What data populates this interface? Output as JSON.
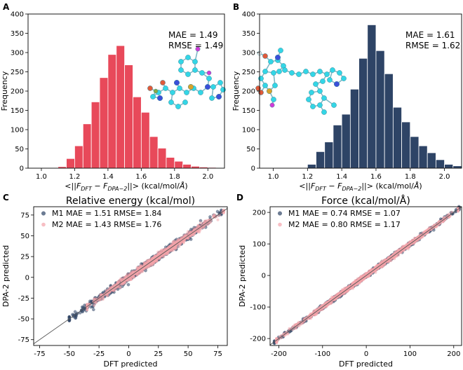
{
  "panels": {
    "A": {
      "letter": "A"
    },
    "B": {
      "letter": "B"
    },
    "C": {
      "letter": "C"
    },
    "D": {
      "letter": "D"
    }
  },
  "chart_data": [
    {
      "id": "A",
      "type": "bar",
      "xlabel": "<||F_DFT − F_DPA−2||> (kcal/mol/Å)",
      "ylabel": "Frequency",
      "xlim": [
        0.92,
        2.1
      ],
      "ylim": [
        0,
        400
      ],
      "xticks": [
        1.0,
        1.2,
        1.4,
        1.6,
        1.8,
        2.0
      ],
      "yticks": [
        0,
        50,
        100,
        150,
        200,
        250,
        300,
        350,
        400
      ],
      "bin_width": 0.05,
      "bin_starts": [
        1.05,
        1.1,
        1.15,
        1.2,
        1.25,
        1.3,
        1.35,
        1.4,
        1.45,
        1.5,
        1.55,
        1.6,
        1.65,
        1.7,
        1.75,
        1.8,
        1.85,
        1.9,
        1.95,
        2.0
      ],
      "values": [
        1,
        4,
        25,
        58,
        115,
        172,
        235,
        295,
        318,
        268,
        185,
        145,
        82,
        52,
        28,
        18,
        10,
        5,
        3,
        2
      ],
      "color": "#e8495a",
      "annotations": [
        "MAE = 1.49",
        "RMSE = 1.49"
      ]
    },
    {
      "id": "B",
      "type": "bar",
      "xlabel": "<||F_DFT − F_DPA−2||> (kcal/mol/Å)",
      "ylabel": "Frequency",
      "xlim": [
        0.92,
        2.1
      ],
      "ylim": [
        0,
        400
      ],
      "xticks": [
        1.0,
        1.2,
        1.4,
        1.6,
        1.8,
        2.0
      ],
      "yticks": [
        0,
        50,
        100,
        150,
        200,
        250,
        300,
        350,
        400
      ],
      "bin_width": 0.05,
      "bin_starts": [
        1.2,
        1.25,
        1.3,
        1.35,
        1.4,
        1.45,
        1.5,
        1.55,
        1.6,
        1.65,
        1.7,
        1.75,
        1.8,
        1.85,
        1.9,
        1.95,
        2.0,
        2.05
      ],
      "values": [
        10,
        43,
        68,
        112,
        140,
        205,
        285,
        372,
        305,
        245,
        158,
        120,
        82,
        58,
        40,
        22,
        10,
        6
      ],
      "color": "#2e4466",
      "annotations": [
        "MAE = 1.61",
        "RMSE = 1.62"
      ]
    },
    {
      "id": "C",
      "type": "scatter",
      "title": "Relative energy (kcal/mol)",
      "xlabel": "DFT predicted",
      "ylabel": "DPA-2 predicted",
      "xlim": [
        -80,
        83
      ],
      "ylim": [
        -82,
        85
      ],
      "xticks": [
        -75,
        -50,
        -25,
        0,
        25,
        50,
        75
      ],
      "yticks": [
        -75,
        -50,
        -25,
        0,
        25,
        50,
        75
      ],
      "legend_position": "top-left",
      "series": [
        {
          "name": "M1 MAE = 1.51 RMSE= 1.84",
          "color": "#2e4466",
          "x_range": [
            -50,
            78
          ],
          "spread": 2.2
        },
        {
          "name": "M2 MAE = 1.43 RMSE= 1.76",
          "color": "#f4a3aa",
          "x_range": [
            -35,
            80
          ],
          "spread": 2.0
        }
      ]
    },
    {
      "id": "D",
      "type": "scatter",
      "title": "Force (kcal/mol/Å)",
      "xlabel": "DFT predicted",
      "ylabel": "DPA-2 predicted",
      "xlim": [
        -220,
        218
      ],
      "ylim": [
        -222,
        218
      ],
      "xticks": [
        -200,
        -100,
        0,
        100,
        200
      ],
      "yticks": [
        -200,
        -100,
        0,
        100,
        200
      ],
      "legend_position": "top-left",
      "series": [
        {
          "name": "M1 MAE = 0.74  RMSE = 1.07",
          "color": "#2e4466",
          "x_range": [
            -210,
            212
          ],
          "spread": 3.0
        },
        {
          "name": "M2 MAE = 0.80  RMSE = 1.17",
          "color": "#f4a3aa",
          "x_range": [
            -205,
            210
          ],
          "spread": 3.4
        }
      ]
    }
  ]
}
